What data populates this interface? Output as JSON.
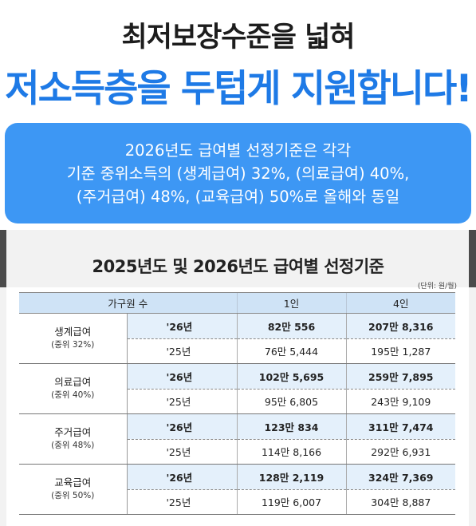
{
  "headline": {
    "line1": "최저보장수준을 넓혀",
    "line2": "저소득층을 두텁게 지원합니다!"
  },
  "callout": {
    "lines": [
      "2026년도 급여별 선정기준은 각각",
      "기준 중위소득의 (생계급여) 32%, (의료급여) 40%,",
      "(주거급여) 48%, (교육급여) 50%로 올해와 동일"
    ]
  },
  "table": {
    "title": "2025년도 및 2026년도 급여별 선정기준",
    "unit": "(단위: 원/월)",
    "headers": [
      "가구원 수",
      "1인",
      "4인"
    ],
    "groups": [
      {
        "name": "생계급여",
        "sub": "(중위 32%)",
        "rows": [
          {
            "year": "'26년",
            "one": "82만 556",
            "four": "207만 8,316"
          },
          {
            "year": "'25년",
            "one": "76만 5,444",
            "four": "195만 1,287"
          }
        ]
      },
      {
        "name": "의료급여",
        "sub": "(중위 40%)",
        "rows": [
          {
            "year": "'26년",
            "one": "102만 5,695",
            "four": "259만 7,895"
          },
          {
            "year": "'25년",
            "one": "95만 6,805",
            "four": "243만 9,109"
          }
        ]
      },
      {
        "name": "주거급여",
        "sub": "(중위 48%)",
        "rows": [
          {
            "year": "'26년",
            "one": "123만 834",
            "four": "311만 7,474"
          },
          {
            "year": "'25년",
            "one": "114만 8,166",
            "four": "292만 6,931"
          }
        ]
      },
      {
        "name": "교육급여",
        "sub": "(중위 50%)",
        "rows": [
          {
            "year": "'26년",
            "one": "128만 2,119",
            "four": "324만 7,369"
          },
          {
            "year": "'25년",
            "one": "119만 6,007",
            "four": "304만 8,887"
          }
        ]
      }
    ]
  }
}
